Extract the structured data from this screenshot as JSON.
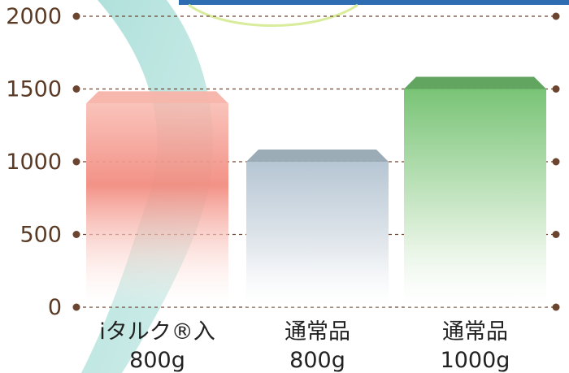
{
  "chart_data": {
    "type": "bar",
    "categories": [
      {
        "line1": "iタルク®入",
        "line2": "800g"
      },
      {
        "line1": "通常品",
        "line2": "800g"
      },
      {
        "line1": "通常品",
        "line2": "1000g"
      }
    ],
    "values": [
      1400,
      1000,
      1500
    ],
    "ylim": [
      0,
      2000
    ],
    "yticks": [
      "0",
      "500",
      "1000",
      "1500",
      "2000"
    ],
    "grid": true,
    "colors": {
      "bar1": "#f4968a",
      "bar1_top": "#f8b3a8",
      "bar2": "#b5c4d0",
      "bar2_top": "#97a8b2",
      "bar3": "#7dc47a",
      "bar3_top": "#5aa058",
      "axis": "#6b4530",
      "ribbon": "#7fcfc6"
    }
  }
}
